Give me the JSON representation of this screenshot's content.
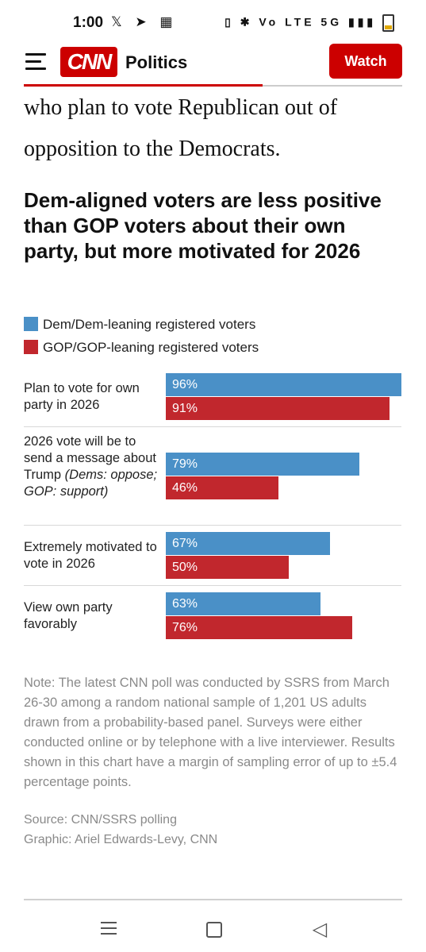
{
  "status_bar": {
    "time": "1:00",
    "left_icons": "𝕏 ➤ ▦",
    "right_icons": "▯ ✱ Vo LTE 5G ▮▮▮"
  },
  "header": {
    "section": "Politics",
    "logo_text": "CNN",
    "watch_label": "Watch",
    "read_progress": 0.63
  },
  "article": {
    "paragraph": "who plan to vote Republican out of opposition to the Democrats."
  },
  "chart_data": {
    "type": "bar",
    "title": "Dem-aligned voters are less positive than GOP voters about their own party, but more motivated for 2026",
    "legend": [
      "Dem/Dem-leaning registered voters",
      "GOP/GOP-leaning registered voters"
    ],
    "colors": {
      "dem": "#4a90c7",
      "gop": "#c1272d"
    },
    "categories": [
      "Plan to vote for own party in 2026",
      "2026 vote will be to send a message about Trump",
      "Extremely motivated to vote in 2026",
      "View own party favorably"
    ],
    "category_note": "(Dems: oppose; GOP: support)",
    "series": [
      {
        "name": "Dem/Dem-leaning registered voters",
        "values": [
          96,
          79,
          67,
          63
        ],
        "labels": [
          "96%",
          "79%",
          "67%",
          "63%"
        ]
      },
      {
        "name": "GOP/GOP-leaning registered voters",
        "values": [
          91,
          46,
          50,
          76
        ],
        "labels": [
          "91%",
          "46%",
          "50%",
          "76%"
        ]
      }
    ],
    "xlim": [
      0,
      96
    ]
  },
  "note": "Note: The latest CNN poll was conducted by SSRS from March 26-30 among a random national sample of 1,201 US adults drawn from a probability-based panel. Surveys were either conducted online or by telephone with a live interviewer. Results shown in this chart have a margin of sampling error of up to ±5.4 percentage points.",
  "source": "Source: CNN/SSRS polling",
  "graphic": "Graphic: Ariel Edwards-Levy, CNN",
  "nav": {
    "back_glyph": "◁"
  }
}
